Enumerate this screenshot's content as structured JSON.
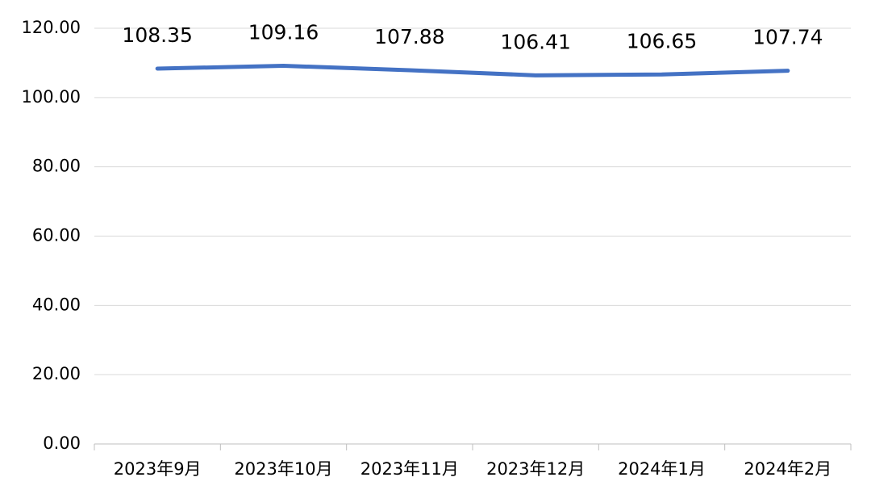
{
  "chart_data": {
    "type": "line",
    "categories": [
      "2023年9月",
      "2023年10月",
      "2023年11月",
      "2023年12月",
      "2024年1月",
      "2024年2月"
    ],
    "values": [
      108.35,
      109.16,
      107.88,
      106.41,
      106.65,
      107.74
    ],
    "color": "#4472c4",
    "ylim": [
      0,
      120
    ],
    "yticks": [
      {
        "value": 0,
        "label": "0.00"
      },
      {
        "value": 20,
        "label": "20.00"
      },
      {
        "value": 40,
        "label": "40.00"
      },
      {
        "value": 60,
        "label": "60.00"
      },
      {
        "value": 80,
        "label": "80.00"
      },
      {
        "value": 100,
        "label": "100.00"
      },
      {
        "value": 120,
        "label": "120.00"
      }
    ],
    "grid": true
  }
}
